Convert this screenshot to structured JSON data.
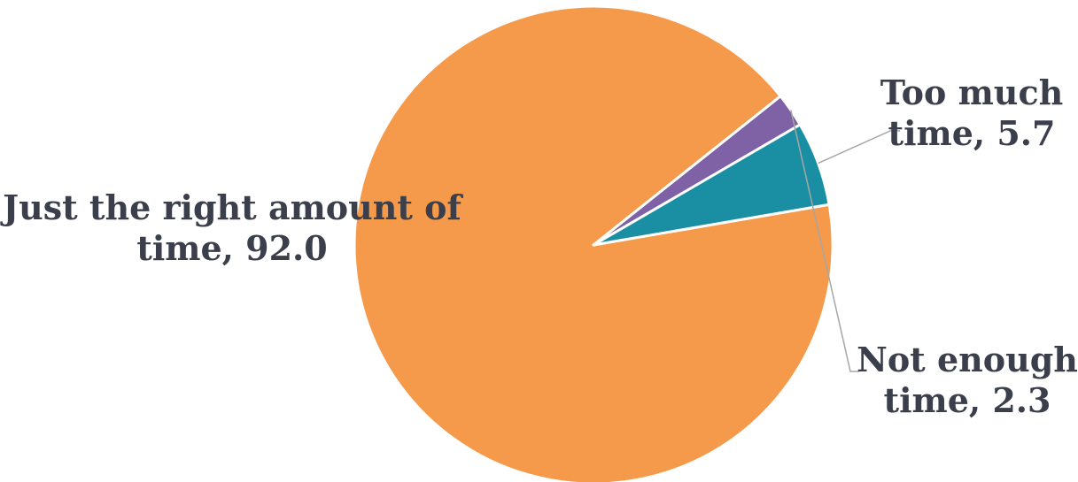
{
  "chart_data": {
    "type": "pie",
    "title": "",
    "legend": "none",
    "slices": [
      {
        "name": "Just the right amount of time",
        "value": 92.0,
        "color": "#f59a4b",
        "label_lines": [
          "Just the right amount of",
          "time, 92.0"
        ]
      },
      {
        "name": "Too much time",
        "value": 5.7,
        "color": "#1a8fa4",
        "label_lines": [
          "Too much",
          "time, 5.7"
        ]
      },
      {
        "name": "Not enough time",
        "value": 2.3,
        "color": "#7e62a5",
        "label_lines": [
          "Not enough",
          "time, 2.3"
        ]
      }
    ]
  }
}
